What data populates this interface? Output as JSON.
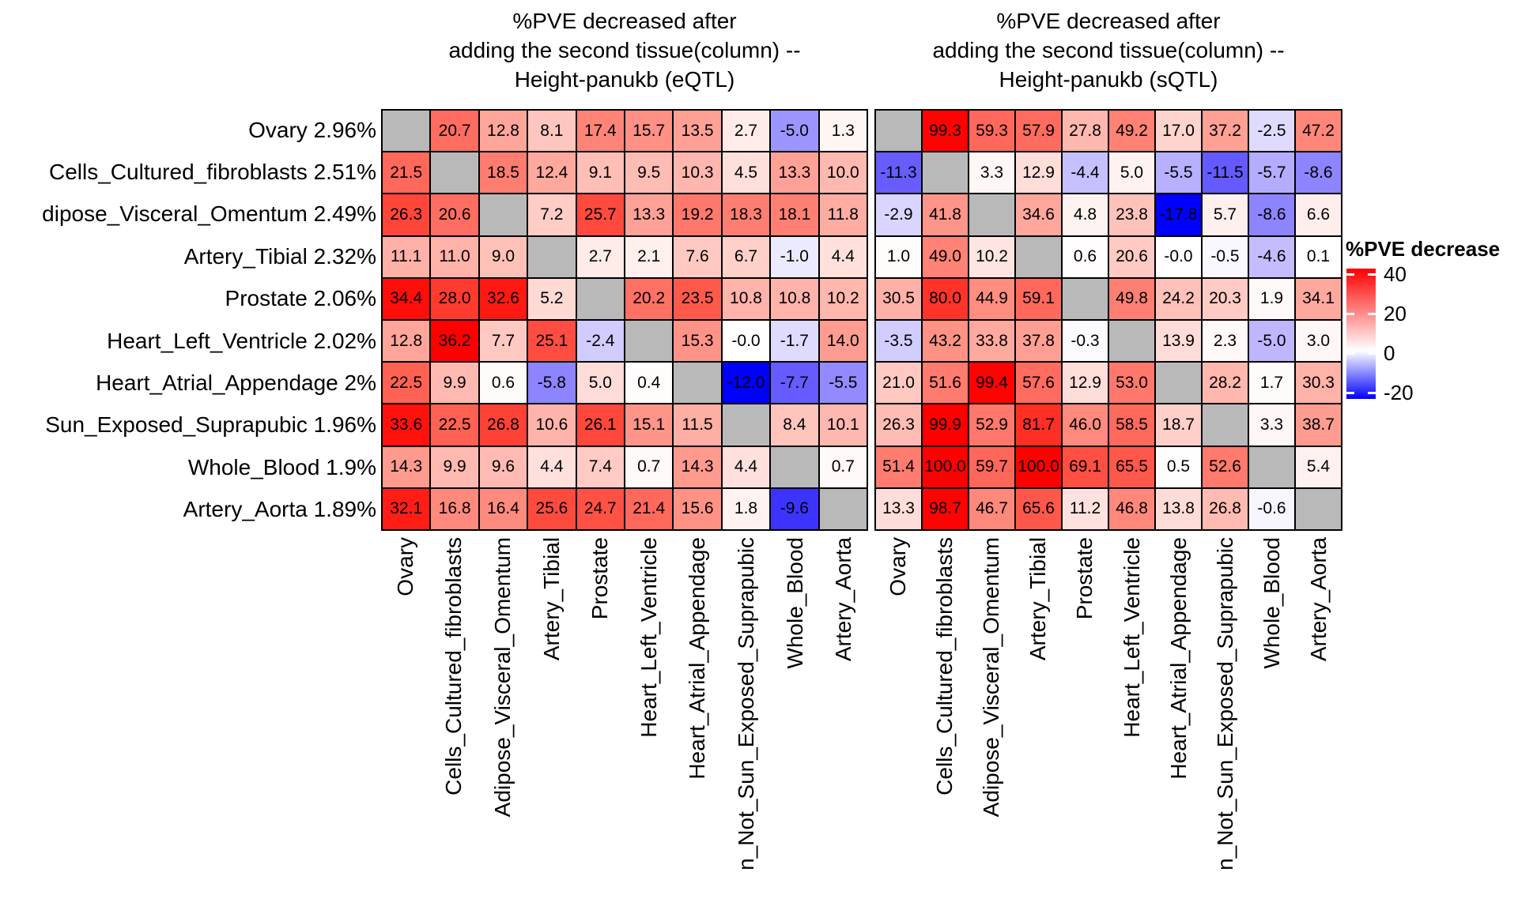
{
  "chart_data": {
    "type": "heatmap",
    "layout": "two-panel diverging heatmap, per-panel color normalization, white at 0, gray diagonal = NA",
    "panels": [
      {
        "id": "eqtl",
        "title": "%PVE decreased after\nadding the second tissue(column) --\nHeight-panukb (eQTL)",
        "values": [
          [
            null,
            "20.7",
            "12.8",
            "8.1",
            "17.4",
            "15.7",
            "13.5",
            "2.7",
            "-5.0",
            "1.3"
          ],
          [
            "21.5",
            null,
            "18.5",
            "12.4",
            "9.1",
            "9.5",
            "10.3",
            "4.5",
            "13.3",
            "10.0"
          ],
          [
            "26.3",
            "20.6",
            null,
            "7.2",
            "25.7",
            "13.3",
            "19.2",
            "18.3",
            "18.1",
            "11.8"
          ],
          [
            "11.1",
            "11.0",
            "9.0",
            null,
            "2.7",
            "2.1",
            "7.6",
            "6.7",
            "-1.0",
            "4.4"
          ],
          [
            "34.4",
            "28.0",
            "32.6",
            "5.2",
            null,
            "20.2",
            "23.5",
            "10.8",
            "10.8",
            "10.2"
          ],
          [
            "12.8",
            "36.2",
            "7.7",
            "25.1",
            "-2.4",
            null,
            "15.3",
            "-0.0",
            "-1.7",
            "14.0"
          ],
          [
            "22.5",
            "9.9",
            "0.6",
            "-5.8",
            "5.0",
            "0.4",
            null,
            "-12.0",
            "-7.7",
            "-5.5"
          ],
          [
            "33.6",
            "22.5",
            "26.8",
            "10.6",
            "26.1",
            "15.1",
            "11.5",
            null,
            "8.4",
            "10.1"
          ],
          [
            "14.3",
            "9.9",
            "9.6",
            "4.4",
            "7.4",
            "0.7",
            "14.3",
            "4.4",
            null,
            "0.7"
          ],
          [
            "32.1",
            "16.8",
            "16.4",
            "25.6",
            "24.7",
            "21.4",
            "15.6",
            "1.8",
            "-9.6",
            null
          ]
        ]
      },
      {
        "id": "sqtl",
        "title": "%PVE decreased after\nadding the second tissue(column) --\nHeight-panukb (sQTL)",
        "values": [
          [
            null,
            "99.3",
            "59.3",
            "57.9",
            "27.8",
            "49.2",
            "17.0",
            "37.2",
            "-2.5",
            "47.2"
          ],
          [
            "-11.3",
            null,
            "3.3",
            "12.9",
            "-4.4",
            "5.0",
            "-5.5",
            "-11.5",
            "-5.7",
            "-8.6"
          ],
          [
            "-2.9",
            "41.8",
            null,
            "34.6",
            "4.8",
            "23.8",
            "-17.8",
            "5.7",
            "-8.6",
            "6.6"
          ],
          [
            "1.0",
            "49.0",
            "10.2",
            null,
            "0.6",
            "20.6",
            "-0.0",
            "-0.5",
            "-4.6",
            "0.1"
          ],
          [
            "30.5",
            "80.0",
            "44.9",
            "59.1",
            null,
            "49.8",
            "24.2",
            "20.3",
            "1.9",
            "34.1"
          ],
          [
            "-3.5",
            "43.2",
            "33.8",
            "37.8",
            "-0.3",
            null,
            "13.9",
            "2.3",
            "-5.0",
            "3.0"
          ],
          [
            "21.0",
            "51.6",
            "99.4",
            "57.6",
            "12.9",
            "53.0",
            null,
            "28.2",
            "1.7",
            "30.3"
          ],
          [
            "26.3",
            "99.9",
            "52.9",
            "81.7",
            "46.0",
            "58.5",
            "18.7",
            null,
            "3.3",
            "38.7"
          ],
          [
            "51.4",
            "100.0",
            "59.7",
            "100.0",
            "69.1",
            "65.5",
            "0.5",
            "52.6",
            null,
            "5.4"
          ],
          [
            "13.3",
            "98.7",
            "46.7",
            "65.6",
            "11.2",
            "46.8",
            "13.8",
            "26.8",
            "-0.6",
            null
          ]
        ]
      }
    ],
    "row_labels": [
      "Ovary 2.96%",
      "Cells_Cultured_fibroblasts 2.51%",
      "dipose_Visceral_Omentum 2.49%",
      "Artery_Tibial 2.32%",
      "Prostate 2.06%",
      "Heart_Left_Ventricle 2.02%",
      "Heart_Atrial_Appendage 2%",
      "Sun_Exposed_Suprapubic 1.96%",
      "Whole_Blood 1.9%",
      "Artery_Aorta 1.89%"
    ],
    "col_labels": [
      "Ovary",
      "Cells_Cultured_fibroblasts",
      "Adipose_Visceral_Omentum",
      "Artery_Tibial",
      "Prostate",
      "Heart_Left_Ventricle",
      "Heart_Atrial_Appendage",
      "n_Not_Sun_Exposed_Suprapubic",
      "Whole_Blood",
      "Artery_Aorta"
    ],
    "legend": {
      "title": "%PVE decrease",
      "ticks": [
        "40",
        "20",
        "0",
        "-20"
      ],
      "colors": {
        "high": "#FF0000",
        "mid": "#FFFFFF",
        "low": "#0000FF",
        "na": "#B9B9B9"
      }
    }
  }
}
